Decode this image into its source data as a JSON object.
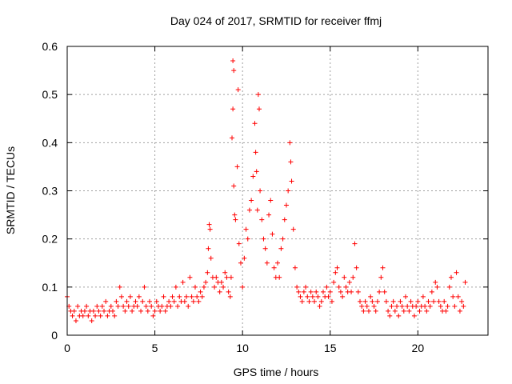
{
  "chart_data": {
    "type": "scatter",
    "title": "Day 024 of 2017, SRMTID for receiver ffmj",
    "xlabel": "GPS time / hours",
    "ylabel": "SRMTID / TECUs",
    "xlim": [
      0,
      24
    ],
    "ylim": [
      0,
      0.6
    ],
    "x_ticks": [
      0,
      5,
      10,
      15,
      20
    ],
    "x_tick_labels": [
      "0",
      "5",
      "10",
      "15",
      "20"
    ],
    "y_ticks": [
      0,
      0.1,
      0.2,
      0.3,
      0.4,
      0.5,
      0.6
    ],
    "y_tick_labels": [
      "0",
      "0.1",
      "0.2",
      "0.3",
      "0.4",
      "0.5",
      "0.6"
    ],
    "grid": true,
    "marker": "+",
    "series": [
      {
        "name": "SRMTID",
        "color": "#ff0000",
        "points": [
          [
            0.0,
            0.08
          ],
          [
            0.1,
            0.06
          ],
          [
            0.2,
            0.05
          ],
          [
            0.3,
            0.04
          ],
          [
            0.4,
            0.05
          ],
          [
            0.5,
            0.03
          ],
          [
            0.6,
            0.06
          ],
          [
            0.7,
            0.04
          ],
          [
            0.8,
            0.05
          ],
          [
            0.9,
            0.04
          ],
          [
            1.0,
            0.05
          ],
          [
            1.1,
            0.06
          ],
          [
            1.2,
            0.04
          ],
          [
            1.3,
            0.05
          ],
          [
            1.4,
            0.03
          ],
          [
            1.5,
            0.05
          ],
          [
            1.6,
            0.04
          ],
          [
            1.7,
            0.06
          ],
          [
            1.8,
            0.05
          ],
          [
            1.9,
            0.04
          ],
          [
            2.0,
            0.06
          ],
          [
            2.1,
            0.05
          ],
          [
            2.2,
            0.07
          ],
          [
            2.3,
            0.04
          ],
          [
            2.4,
            0.05
          ],
          [
            2.5,
            0.06
          ],
          [
            2.6,
            0.05
          ],
          [
            2.7,
            0.04
          ],
          [
            2.8,
            0.07
          ],
          [
            2.9,
            0.06
          ],
          [
            3.0,
            0.1
          ],
          [
            3.1,
            0.08
          ],
          [
            3.2,
            0.06
          ],
          [
            3.3,
            0.05
          ],
          [
            3.4,
            0.07
          ],
          [
            3.5,
            0.06
          ],
          [
            3.6,
            0.08
          ],
          [
            3.7,
            0.05
          ],
          [
            3.8,
            0.06
          ],
          [
            3.9,
            0.07
          ],
          [
            4.0,
            0.06
          ],
          [
            4.1,
            0.08
          ],
          [
            4.2,
            0.05
          ],
          [
            4.3,
            0.07
          ],
          [
            4.4,
            0.1
          ],
          [
            4.5,
            0.06
          ],
          [
            4.6,
            0.05
          ],
          [
            4.7,
            0.07
          ],
          [
            4.8,
            0.06
          ],
          [
            4.9,
            0.04
          ],
          [
            5.0,
            0.05
          ],
          [
            5.1,
            0.07
          ],
          [
            5.2,
            0.06
          ],
          [
            5.3,
            0.05
          ],
          [
            5.4,
            0.06
          ],
          [
            5.5,
            0.08
          ],
          [
            5.6,
            0.05
          ],
          [
            5.7,
            0.06
          ],
          [
            5.8,
            0.07
          ],
          [
            5.9,
            0.06
          ],
          [
            6.0,
            0.08
          ],
          [
            6.1,
            0.07
          ],
          [
            6.2,
            0.1
          ],
          [
            6.3,
            0.06
          ],
          [
            6.4,
            0.08
          ],
          [
            6.5,
            0.07
          ],
          [
            6.6,
            0.11
          ],
          [
            6.7,
            0.07
          ],
          [
            6.8,
            0.08
          ],
          [
            6.9,
            0.06
          ],
          [
            7.0,
            0.12
          ],
          [
            7.1,
            0.08
          ],
          [
            7.2,
            0.07
          ],
          [
            7.3,
            0.1
          ],
          [
            7.4,
            0.08
          ],
          [
            7.5,
            0.07
          ],
          [
            7.6,
            0.09
          ],
          [
            7.7,
            0.08
          ],
          [
            7.8,
            0.1
          ],
          [
            7.9,
            0.11
          ],
          [
            8.0,
            0.13
          ],
          [
            8.05,
            0.18
          ],
          [
            8.1,
            0.23
          ],
          [
            8.15,
            0.22
          ],
          [
            8.2,
            0.16
          ],
          [
            8.3,
            0.12
          ],
          [
            8.4,
            0.1
          ],
          [
            8.5,
            0.12
          ],
          [
            8.6,
            0.11
          ],
          [
            8.7,
            0.09
          ],
          [
            8.8,
            0.11
          ],
          [
            8.9,
            0.1
          ],
          [
            9.0,
            0.13
          ],
          [
            9.1,
            0.12
          ],
          [
            9.2,
            0.09
          ],
          [
            9.3,
            0.08
          ],
          [
            9.35,
            0.12
          ],
          [
            9.4,
            0.41
          ],
          [
            9.45,
            0.57
          ],
          [
            9.5,
            0.55
          ],
          [
            9.45,
            0.47
          ],
          [
            9.5,
            0.31
          ],
          [
            9.55,
            0.25
          ],
          [
            9.6,
            0.24
          ],
          [
            9.7,
            0.35
          ],
          [
            9.75,
            0.51
          ],
          [
            9.8,
            0.19
          ],
          [
            9.9,
            0.15
          ],
          [
            10.0,
            0.1
          ],
          [
            10.1,
            0.16
          ],
          [
            10.2,
            0.22
          ],
          [
            10.3,
            0.2
          ],
          [
            10.4,
            0.26
          ],
          [
            10.5,
            0.28
          ],
          [
            10.6,
            0.33
          ],
          [
            10.7,
            0.44
          ],
          [
            10.75,
            0.38
          ],
          [
            10.8,
            0.34
          ],
          [
            10.85,
            0.26
          ],
          [
            10.9,
            0.5
          ],
          [
            10.95,
            0.47
          ],
          [
            11.0,
            0.3
          ],
          [
            11.1,
            0.24
          ],
          [
            11.2,
            0.2
          ],
          [
            11.3,
            0.18
          ],
          [
            11.4,
            0.15
          ],
          [
            11.5,
            0.25
          ],
          [
            11.6,
            0.28
          ],
          [
            11.7,
            0.21
          ],
          [
            11.8,
            0.14
          ],
          [
            11.9,
            0.12
          ],
          [
            12.0,
            0.15
          ],
          [
            12.1,
            0.12
          ],
          [
            12.2,
            0.18
          ],
          [
            12.3,
            0.2
          ],
          [
            12.4,
            0.24
          ],
          [
            12.5,
            0.27
          ],
          [
            12.6,
            0.3
          ],
          [
            12.7,
            0.4
          ],
          [
            12.75,
            0.36
          ],
          [
            12.8,
            0.32
          ],
          [
            12.9,
            0.22
          ],
          [
            13.0,
            0.14
          ],
          [
            13.1,
            0.1
          ],
          [
            13.2,
            0.09
          ],
          [
            13.3,
            0.08
          ],
          [
            13.4,
            0.07
          ],
          [
            13.5,
            0.09
          ],
          [
            13.6,
            0.1
          ],
          [
            13.7,
            0.08
          ],
          [
            13.8,
            0.07
          ],
          [
            13.9,
            0.09
          ],
          [
            14.0,
            0.08
          ],
          [
            14.1,
            0.07
          ],
          [
            14.2,
            0.09
          ],
          [
            14.3,
            0.08
          ],
          [
            14.4,
            0.06
          ],
          [
            14.5,
            0.07
          ],
          [
            14.6,
            0.09
          ],
          [
            14.7,
            0.08
          ],
          [
            14.8,
            0.1
          ],
          [
            14.9,
            0.08
          ],
          [
            15.0,
            0.09
          ],
          [
            15.1,
            0.07
          ],
          [
            15.2,
            0.11
          ],
          [
            15.3,
            0.13
          ],
          [
            15.4,
            0.14
          ],
          [
            15.5,
            0.1
          ],
          [
            15.6,
            0.09
          ],
          [
            15.7,
            0.08
          ],
          [
            15.8,
            0.12
          ],
          [
            15.9,
            0.1
          ],
          [
            16.0,
            0.09
          ],
          [
            16.1,
            0.11
          ],
          [
            16.2,
            0.09
          ],
          [
            16.3,
            0.12
          ],
          [
            16.4,
            0.19
          ],
          [
            16.5,
            0.14
          ],
          [
            16.6,
            0.09
          ],
          [
            16.7,
            0.07
          ],
          [
            16.8,
            0.06
          ],
          [
            16.9,
            0.05
          ],
          [
            17.0,
            0.07
          ],
          [
            17.1,
            0.06
          ],
          [
            17.2,
            0.05
          ],
          [
            17.3,
            0.08
          ],
          [
            17.4,
            0.07
          ],
          [
            17.5,
            0.06
          ],
          [
            17.6,
            0.05
          ],
          [
            17.7,
            0.07
          ],
          [
            17.8,
            0.09
          ],
          [
            17.9,
            0.12
          ],
          [
            18.0,
            0.14
          ],
          [
            18.1,
            0.09
          ],
          [
            18.2,
            0.07
          ],
          [
            18.3,
            0.05
          ],
          [
            18.4,
            0.04
          ],
          [
            18.5,
            0.06
          ],
          [
            18.6,
            0.07
          ],
          [
            18.7,
            0.05
          ],
          [
            18.8,
            0.06
          ],
          [
            18.9,
            0.04
          ],
          [
            19.0,
            0.07
          ],
          [
            19.1,
            0.06
          ],
          [
            19.2,
            0.05
          ],
          [
            19.3,
            0.08
          ],
          [
            19.4,
            0.06
          ],
          [
            19.5,
            0.05
          ],
          [
            19.6,
            0.07
          ],
          [
            19.7,
            0.06
          ],
          [
            19.8,
            0.04
          ],
          [
            19.9,
            0.06
          ],
          [
            20.0,
            0.07
          ],
          [
            20.1,
            0.05
          ],
          [
            20.2,
            0.06
          ],
          [
            20.3,
            0.08
          ],
          [
            20.4,
            0.06
          ],
          [
            20.5,
            0.05
          ],
          [
            20.6,
            0.07
          ],
          [
            20.7,
            0.06
          ],
          [
            20.8,
            0.09
          ],
          [
            20.9,
            0.07
          ],
          [
            21.0,
            0.11
          ],
          [
            21.1,
            0.1
          ],
          [
            21.2,
            0.07
          ],
          [
            21.3,
            0.06
          ],
          [
            21.4,
            0.05
          ],
          [
            21.5,
            0.07
          ],
          [
            21.6,
            0.05
          ],
          [
            21.7,
            0.06
          ],
          [
            21.8,
            0.1
          ],
          [
            21.9,
            0.12
          ],
          [
            22.0,
            0.08
          ],
          [
            22.1,
            0.06
          ],
          [
            22.2,
            0.13
          ],
          [
            22.3,
            0.08
          ],
          [
            22.4,
            0.05
          ],
          [
            22.5,
            0.07
          ],
          [
            22.6,
            0.06
          ],
          [
            22.7,
            0.11
          ]
        ]
      }
    ]
  }
}
